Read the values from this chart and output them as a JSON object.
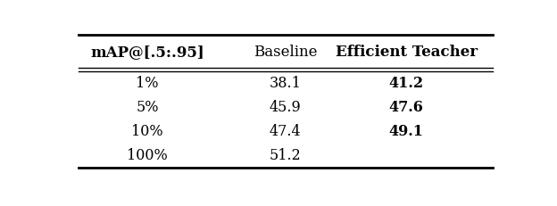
{
  "col_headers": [
    "mAP@[.5:.95]",
    "Baseline",
    "Efficient Teacher"
  ],
  "rows": [
    [
      "1%",
      "38.1",
      "41.2"
    ],
    [
      "5%",
      "45.9",
      "47.6"
    ],
    [
      "10%",
      "47.4",
      "49.1"
    ],
    [
      "100%",
      "51.2",
      ""
    ]
  ],
  "bold_col2": [
    true,
    true,
    true,
    false
  ],
  "header_bold": [
    true,
    false,
    true
  ],
  "background_color": "#ffffff",
  "figsize": [
    6.24,
    2.32
  ],
  "dpi": 100
}
